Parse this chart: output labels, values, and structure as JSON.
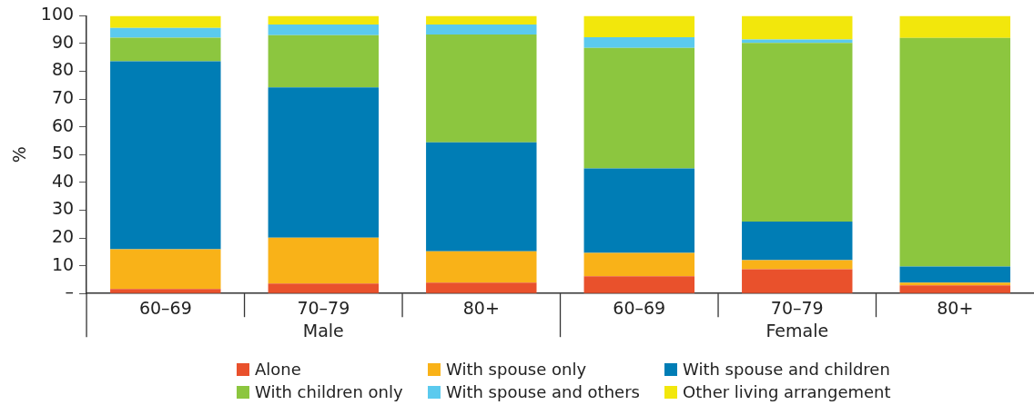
{
  "chart_data": {
    "type": "bar",
    "stacked": true,
    "ylabel": "%",
    "categories": [
      "60–69",
      "70–79",
      "80+",
      "60–69",
      "70–79",
      "80+"
    ],
    "annotations": [
      "Male",
      "Female"
    ],
    "series": [
      {
        "name": "Alone",
        "color": "#e9512c",
        "values": [
          1.6,
          3.6,
          3.9,
          6.2,
          8.7,
          2.9
        ]
      },
      {
        "name": "With spouse only",
        "color": "#f9b218",
        "values": [
          14.3,
          16.5,
          11.3,
          8.4,
          3.3,
          1.0
        ]
      },
      {
        "name": "With spouse and children",
        "color": "#007db5",
        "values": [
          67.7,
          54.1,
          39.2,
          30.4,
          13.9,
          5.8
        ]
      },
      {
        "name": "With children only",
        "color": "#8cc63f",
        "values": [
          8.5,
          18.8,
          38.9,
          43.4,
          64.3,
          82.3
        ]
      },
      {
        "name": "With spouse and others",
        "color": "#5bcaee",
        "values": [
          3.5,
          3.9,
          3.6,
          3.9,
          1.3,
          0
        ]
      },
      {
        "name": "Other living arrangement",
        "color": "#f2e70c",
        "values": [
          4.4,
          3.1,
          3.1,
          7.7,
          8.5,
          8.0
        ]
      }
    ],
    "ylim": [
      0,
      100
    ],
    "yticks": [
      {
        "value": 0,
        "label": "–"
      },
      10,
      20,
      30,
      40,
      50,
      60,
      70,
      80,
      90,
      100
    ],
    "grid": false,
    "legend": "bottom"
  }
}
